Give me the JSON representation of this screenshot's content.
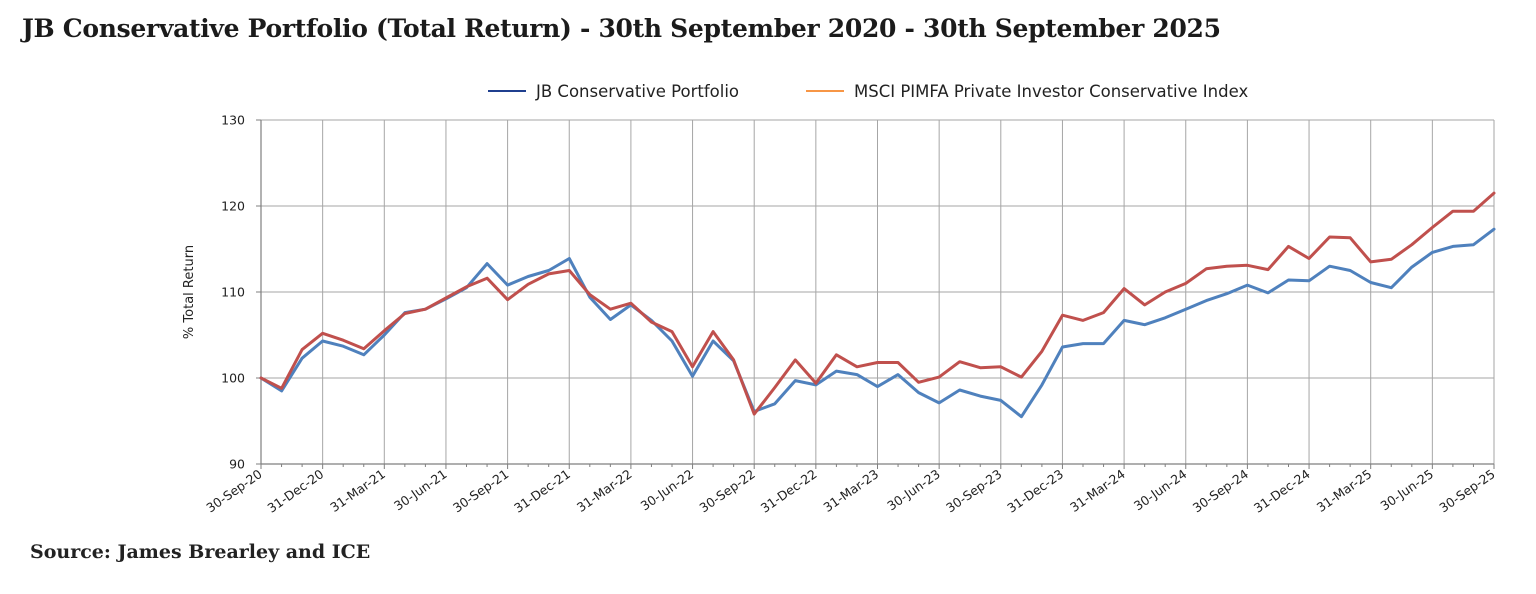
{
  "title": "JB Conservative Portfolio (Total Return) - 30th September 2020 - 30th September 2025",
  "source": "Source: James Brearley and ICE",
  "colors": {
    "portfolio": "#4f81bd",
    "index": "#c0504d",
    "portfolio_legend": "#1f3f8f",
    "index_legend": "#f79646",
    "grid": "#a6a6a6",
    "axis": "#7f7f7f"
  },
  "chart_data": {
    "type": "line",
    "title": "JB Conservative Portfolio (Total Return) - 30th September 2020 - 30th September 2025",
    "xlabel": "",
    "ylabel": "% Total Return",
    "ylim": [
      90,
      130
    ],
    "yticks": [
      90,
      100,
      110,
      120,
      130
    ],
    "grid": true,
    "legend_position": "top",
    "x_tick_labels": [
      "30-Sep-20",
      "31-Dec-20",
      "31-Mar-21",
      "30-Jun-21",
      "30-Sep-21",
      "31-Dec-21",
      "31-Mar-22",
      "30-Jun-22",
      "30-Sep-22",
      "31-Dec-22",
      "31-Mar-23",
      "30-Jun-23",
      "30-Sep-23",
      "31-Dec-23",
      "31-Mar-24",
      "30-Jun-24",
      "30-Sep-24",
      "31-Dec-24",
      "31-Mar-25",
      "30-Jun-25",
      "30-Sep-25"
    ],
    "series": [
      {
        "name": "JB Conservative Portfolio",
        "values": [
          100.0,
          98.5,
          102.3,
          104.3,
          103.7,
          102.7,
          105.0,
          107.6,
          108.0,
          109.2,
          110.5,
          113.3,
          110.8,
          111.8,
          112.5,
          113.9,
          109.4,
          106.8,
          108.5,
          106.7,
          104.3,
          100.2,
          104.3,
          102.0,
          96.1,
          97.0,
          99.7,
          99.2,
          100.8,
          100.4,
          99.0,
          100.4,
          98.3,
          97.1,
          98.6,
          97.9,
          97.4,
          95.5,
          99.2,
          103.6,
          104.0,
          104.0,
          106.7,
          106.2,
          107.0,
          108.0,
          109.0,
          109.8,
          110.8,
          109.9,
          111.4,
          111.3,
          113.0,
          112.5,
          111.1,
          110.5,
          112.9,
          114.6,
          115.3,
          115.5,
          117.3
        ]
      },
      {
        "name": "MSCI PIMFA Private Investor Conservative Index",
        "values": [
          100.0,
          98.8,
          103.3,
          105.2,
          104.4,
          103.4,
          105.5,
          107.5,
          108.0,
          109.3,
          110.6,
          111.6,
          109.1,
          110.9,
          112.1,
          112.5,
          109.7,
          108.0,
          108.7,
          106.5,
          105.4,
          101.3,
          105.4,
          102.1,
          95.8,
          98.9,
          102.1,
          99.4,
          102.7,
          101.3,
          101.8,
          101.8,
          99.5,
          100.1,
          101.9,
          101.2,
          101.3,
          100.1,
          103.1,
          107.3,
          106.7,
          107.6,
          110.4,
          108.5,
          110.0,
          111.0,
          112.7,
          113.0,
          113.1,
          112.6,
          115.3,
          113.9,
          116.4,
          116.3,
          113.5,
          113.8,
          115.5,
          117.5,
          119.4,
          119.4,
          121.5
        ]
      }
    ]
  }
}
